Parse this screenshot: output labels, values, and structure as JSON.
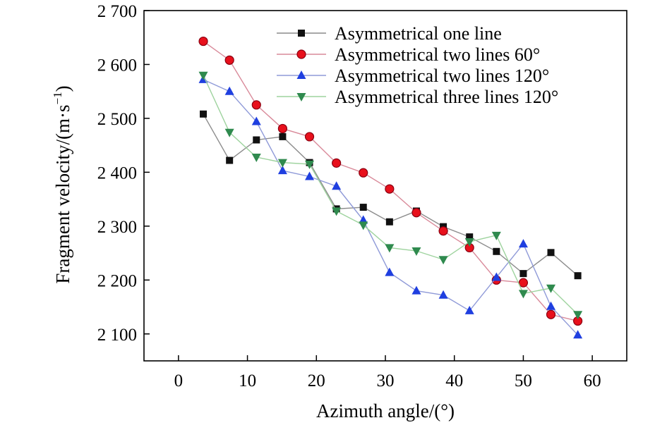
{
  "chart_data": {
    "type": "line",
    "xlabel": "Azimuth angle/(°)",
    "ylabel": "Fragment velocity/(m·s⁻¹)",
    "xlim": [
      -5,
      65
    ],
    "ylim": [
      2050,
      2700
    ],
    "x_ticks": [
      0,
      10,
      20,
      30,
      40,
      50,
      60
    ],
    "x_tick_labels": [
      "0",
      "10",
      "20",
      "30",
      "40",
      "50",
      "60"
    ],
    "y_ticks": [
      2100,
      2200,
      2300,
      2400,
      2500,
      2600,
      2700
    ],
    "y_tick_labels": [
      "2 100",
      "2 200",
      "2 300",
      "2 400",
      "2 500",
      "2 600",
      "2 700"
    ],
    "grid": false,
    "legend_position": "top-right",
    "x": [
      3.6,
      7.4,
      11.3,
      15.1,
      19.0,
      22.9,
      26.8,
      30.6,
      34.5,
      38.4,
      42.2,
      46.1,
      50.0,
      54.0,
      57.9
    ],
    "series": [
      {
        "name": "Asymmetrical one line",
        "marker": "square",
        "color": "#111111",
        "line_color": "#8c8c8c",
        "values": [
          2508,
          2422,
          2460,
          2466,
          2418,
          2332,
          2335,
          2308,
          2328,
          2299,
          2280,
          2253,
          2212,
          2251,
          2208
        ]
      },
      {
        "name": "Asymmetrical two lines 60°",
        "marker": "circle",
        "color": "#e8101c",
        "line_color": "#d98a9a",
        "values": [
          2643,
          2608,
          2525,
          2481,
          2466,
          2417,
          2399,
          2369,
          2325,
          2291,
          2260,
          2200,
          2195,
          2136,
          2124
        ]
      },
      {
        "name": "Asymmetrical two lines 120°",
        "marker": "triangle-up",
        "color": "#1f3fe0",
        "line_color": "#8f9ad8",
        "values": [
          2572,
          2550,
          2494,
          2403,
          2392,
          2374,
          2311,
          2214,
          2180,
          2172,
          2143,
          2205,
          2267,
          2151,
          2098
        ]
      },
      {
        "name": "Asymmetrical three lines 120°",
        "marker": "triangle-down",
        "color": "#2f8a4e",
        "line_color": "#9ed39e",
        "values": [
          2580,
          2474,
          2428,
          2418,
          2415,
          2328,
          2302,
          2260,
          2254,
          2238,
          2271,
          2283,
          2175,
          2185,
          2136
        ]
      }
    ]
  }
}
